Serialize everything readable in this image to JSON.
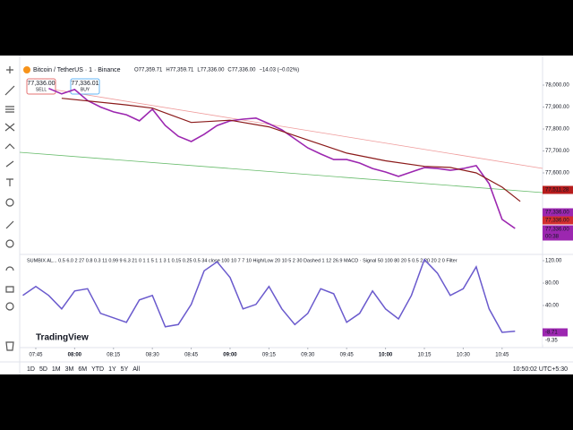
{
  "header": {
    "symbol": "Bitcoin / TetherUS · 1 · Binance",
    "ohlc": [
      "O77,359.71",
      "H77,359.71",
      "L77,336.00",
      "C77,336.00",
      "−14.03 (−0.02%)"
    ],
    "sell": {
      "price": "77,336.00",
      "label": "SELL"
    },
    "buy": {
      "price": "77,336.01",
      "label": "BUY"
    }
  },
  "chart_data": [
    {
      "type": "line",
      "xlim": [
        459,
        660
      ],
      "ylim": [
        77300,
        78100
      ],
      "grid": false,
      "xticks": [
        {
          "value": 465,
          "label": "07:45"
        },
        {
          "value": 480,
          "label": "08:00"
        },
        {
          "value": 495,
          "label": "08:15"
        },
        {
          "value": 510,
          "label": "08:30"
        },
        {
          "value": 525,
          "label": "08:45"
        },
        {
          "value": 540,
          "label": "09:00"
        },
        {
          "value": 555,
          "label": "09:15"
        },
        {
          "value": 570,
          "label": "09:30"
        },
        {
          "value": 585,
          "label": "09:45"
        },
        {
          "value": 600,
          "label": "10:00"
        },
        {
          "value": 615,
          "label": "10:15"
        },
        {
          "value": 630,
          "label": "10:30"
        },
        {
          "value": 645,
          "label": "10:45"
        }
      ],
      "yticks": [
        {
          "value": 78000,
          "label": "78,000.00"
        },
        {
          "value": 77900,
          "label": "77,900.00"
        },
        {
          "value": 77800,
          "label": "77,800.00"
        },
        {
          "value": 77700,
          "label": "77,700.00"
        },
        {
          "value": 77600,
          "label": "77,600.00"
        }
      ],
      "series": [
        {
          "color": "#9c27b0",
          "width": 1.6,
          "x": [
            470,
            475,
            480,
            485,
            490,
            495,
            500,
            505,
            510,
            515,
            520,
            525,
            530,
            535,
            540,
            545,
            550,
            555,
            560,
            565,
            570,
            575,
            580,
            585,
            590,
            595,
            600,
            605,
            610,
            615,
            620,
            625,
            630,
            635,
            640,
            645,
            650
          ],
          "values": [
            77985,
            77960,
            77980,
            77930,
            77900,
            77878,
            77865,
            77837,
            77890,
            77816,
            77767,
            77743,
            77776,
            77816,
            77837,
            77845,
            77850,
            77824,
            77796,
            77755,
            77714,
            77686,
            77661,
            77661,
            77645,
            77620,
            77604,
            77584,
            77604,
            77624,
            77620,
            77612,
            77620,
            77633,
            77551,
            77388,
            77347
          ]
        },
        {
          "color": "#8b1a1a",
          "width": 1.2,
          "x": [
            475,
            500,
            510,
            525,
            540,
            555,
            570,
            585,
            600,
            615,
            625,
            635,
            645,
            652
          ],
          "values": [
            77940,
            77910,
            77895,
            77830,
            77840,
            77810,
            77750,
            77690,
            77655,
            77630,
            77625,
            77600,
            77535,
            77470
          ]
        }
      ]
    },
    {
      "type": "line",
      "title": "SUMBIX AL... 0.5 6.0 2 27 0.8 0.3 11 0.99 9 6.3 21 0 1 1 5 1 1 3 1 0.15 0.25 0.5 34 close 100 10 7 7 10 High/Low 20 10 5 2 30 Dashed 1 12 26.9 MACD · Signal 50 100 80 20 5 0.5 2 20 20 2 0 Filter",
      "xlim": [
        459,
        660
      ],
      "ylim": [
        -12,
        130
      ],
      "grid": false,
      "yticks": [
        {
          "value": 120,
          "label": "120.00"
        },
        {
          "value": 80,
          "label": "80.00"
        },
        {
          "value": 40,
          "label": "40.00"
        }
      ],
      "series": [
        {
          "color": "#6a5acd",
          "width": 1.5,
          "x": [
            460,
            465,
            470,
            475,
            480,
            485,
            490,
            495,
            500,
            505,
            510,
            515,
            520,
            525,
            530,
            535,
            540,
            545,
            550,
            555,
            560,
            565,
            570,
            575,
            580,
            585,
            590,
            595,
            600,
            605,
            610,
            615,
            620,
            625,
            630,
            635,
            640,
            645,
            650
          ],
          "values": [
            58,
            74,
            58,
            34,
            66,
            70,
            26,
            18,
            10,
            50,
            58,
            2,
            6,
            42,
            102,
            118,
            90,
            34,
            42,
            74,
            34,
            6,
            26,
            70,
            61,
            10,
            26,
            66,
            34,
            16,
            58,
            122,
            98,
            58,
            70,
            109,
            34,
            -8,
            -6
          ]
        }
      ]
    }
  ],
  "price_badges": [
    {
      "label": "77,511.28",
      "color": "#b71c1c"
    },
    {
      "label": "77,336.00",
      "color": "#9c27b0"
    },
    {
      "label": "77,336.00",
      "color": "#d32f2f"
    },
    {
      "label": "77,336.00",
      "color": "#9c27b0"
    }
  ],
  "countdown": "00:38",
  "osc_badges": [
    {
      "label": "-8.71",
      "color": "#9c27b0"
    },
    {
      "label": "-9.35",
      "color": "#ffffff"
    }
  ],
  "logo": "TradingView",
  "footer": {
    "ranges": [
      "1D",
      "5D",
      "1M",
      "3M",
      "6M",
      "YTD",
      "1Y",
      "5Y",
      "All"
    ],
    "time": "10:50:02 UTC+5:30"
  }
}
